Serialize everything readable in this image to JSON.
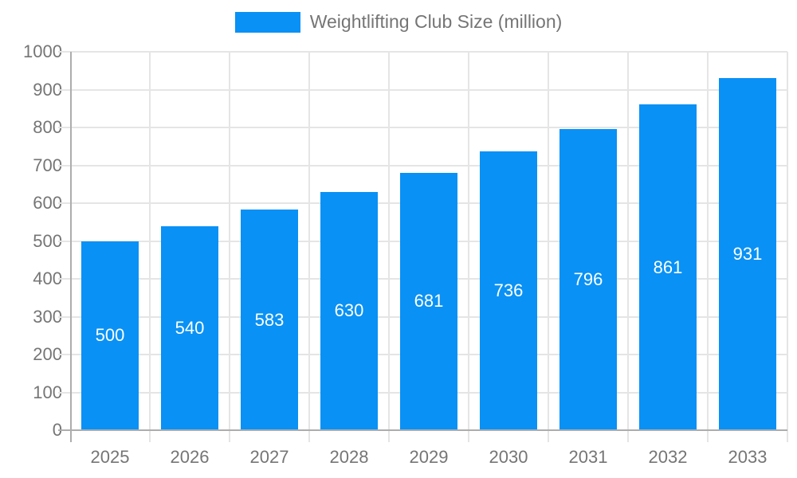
{
  "legend": {
    "label": "Weightlifting Club Size (million)"
  },
  "colors": {
    "bar": "#0991F5",
    "bar_value_text": "#ffffff",
    "axis_text": "#757575",
    "legend_text": "#757575",
    "gridline": "#e5e5e5",
    "axis_line": "#adadad",
    "background": "#ffffff"
  },
  "chart_data": {
    "type": "bar",
    "title": "Weightlifting Club Size (million)",
    "categories": [
      "2025",
      "2026",
      "2027",
      "2028",
      "2029",
      "2030",
      "2031",
      "2032",
      "2033"
    ],
    "series": [
      {
        "name": "Weightlifting Club Size (million)",
        "values": [
          500,
          540,
          583,
          630,
          681,
          736,
          796,
          861,
          931
        ]
      }
    ],
    "value_labels_position": "inside-center",
    "xlabel": "",
    "ylabel": "",
    "ylim": [
      0,
      1000
    ],
    "ytick_step": 100,
    "yticks": [
      0,
      100,
      200,
      300,
      400,
      500,
      600,
      700,
      800,
      900,
      1000
    ],
    "grid": true,
    "legend_position": "top-center"
  }
}
